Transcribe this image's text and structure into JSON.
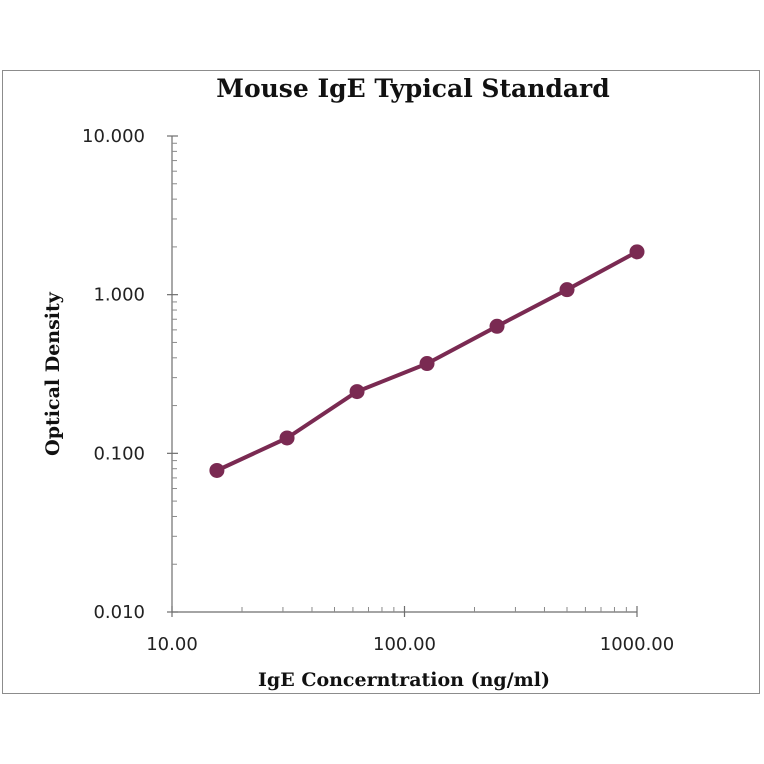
{
  "chart_data": {
    "type": "line",
    "title": "Mouse IgE Typical Standard",
    "xlabel": "IgE Concerntration (ng/ml)",
    "ylabel": "Optical Density",
    "x_scale": "log",
    "y_scale": "log",
    "xlim": [
      10,
      1000
    ],
    "ylim": [
      0.01,
      10
    ],
    "x_ticks": [
      "10.00",
      "100.00",
      "1000.00"
    ],
    "y_ticks": [
      "0.010",
      "0.100",
      "1.000",
      "10.000"
    ],
    "grid": false,
    "legend": "none",
    "series": [
      {
        "color": "#7a2a52",
        "x": [
          15.6,
          31.25,
          62.5,
          125,
          250,
          500,
          1000
        ],
        "y": [
          0.078,
          0.125,
          0.245,
          0.368,
          0.632,
          1.075,
          1.862
        ]
      }
    ]
  }
}
